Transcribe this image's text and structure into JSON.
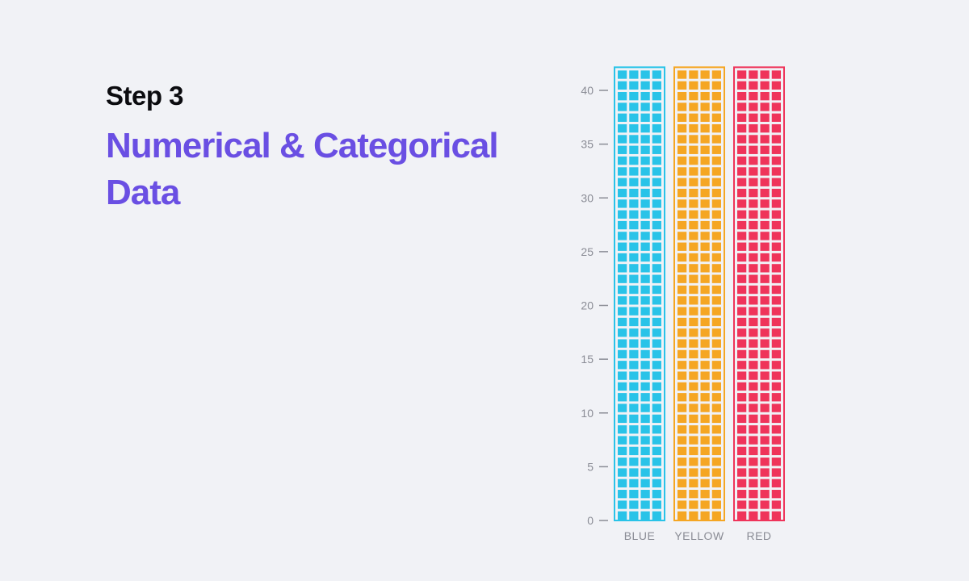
{
  "header": {
    "step": "Step 3",
    "title": "Numerical & Categorical Data"
  },
  "chart_data": {
    "type": "bar",
    "categories": [
      "BLUE",
      "YELLOW",
      "RED"
    ],
    "values": [
      42,
      42,
      42
    ],
    "colors": [
      "#29C3E8",
      "#F5A623",
      "#EF345A"
    ],
    "yticks": [
      0,
      5,
      10,
      15,
      20,
      25,
      30,
      35,
      40
    ],
    "ylim": [
      0,
      42
    ],
    "cells_per_row": 4,
    "style": "waffle-column",
    "grid": false,
    "title": "",
    "xlabel": "",
    "ylabel": ""
  }
}
